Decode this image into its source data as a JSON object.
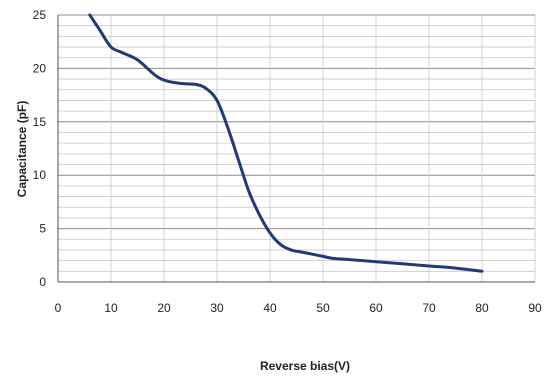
{
  "chart_data": {
    "type": "line",
    "xlabel": "Reverse bias(V)",
    "ylabel": "Capacitance (pF)",
    "xlim": [
      0,
      90
    ],
    "ylim": [
      0,
      25
    ],
    "xticks": [
      "0",
      "10",
      "20",
      "30",
      "40",
      "50",
      "60",
      "70",
      "80",
      "90"
    ],
    "yticks": [
      "0",
      "5",
      "10",
      "15",
      "20",
      "25"
    ],
    "grid": true,
    "legend": "none",
    "series": [
      {
        "color": "#1f3a7a",
        "x": [
          6,
          8,
          10,
          12,
          15,
          18,
          20,
          23,
          26,
          28,
          30,
          32,
          34,
          36,
          38,
          40,
          42,
          44,
          46,
          48,
          50,
          52,
          55,
          60,
          65,
          70,
          75,
          80
        ],
        "y": [
          25,
          23.5,
          22,
          21.5,
          20.8,
          19.5,
          18.9,
          18.6,
          18.5,
          18.1,
          17,
          14.5,
          11.5,
          8.5,
          6.3,
          4.6,
          3.5,
          3.0,
          2.8,
          2.6,
          2.4,
          2.2,
          2.1,
          1.9,
          1.7,
          1.5,
          1.3,
          1.0
        ]
      }
    ]
  }
}
